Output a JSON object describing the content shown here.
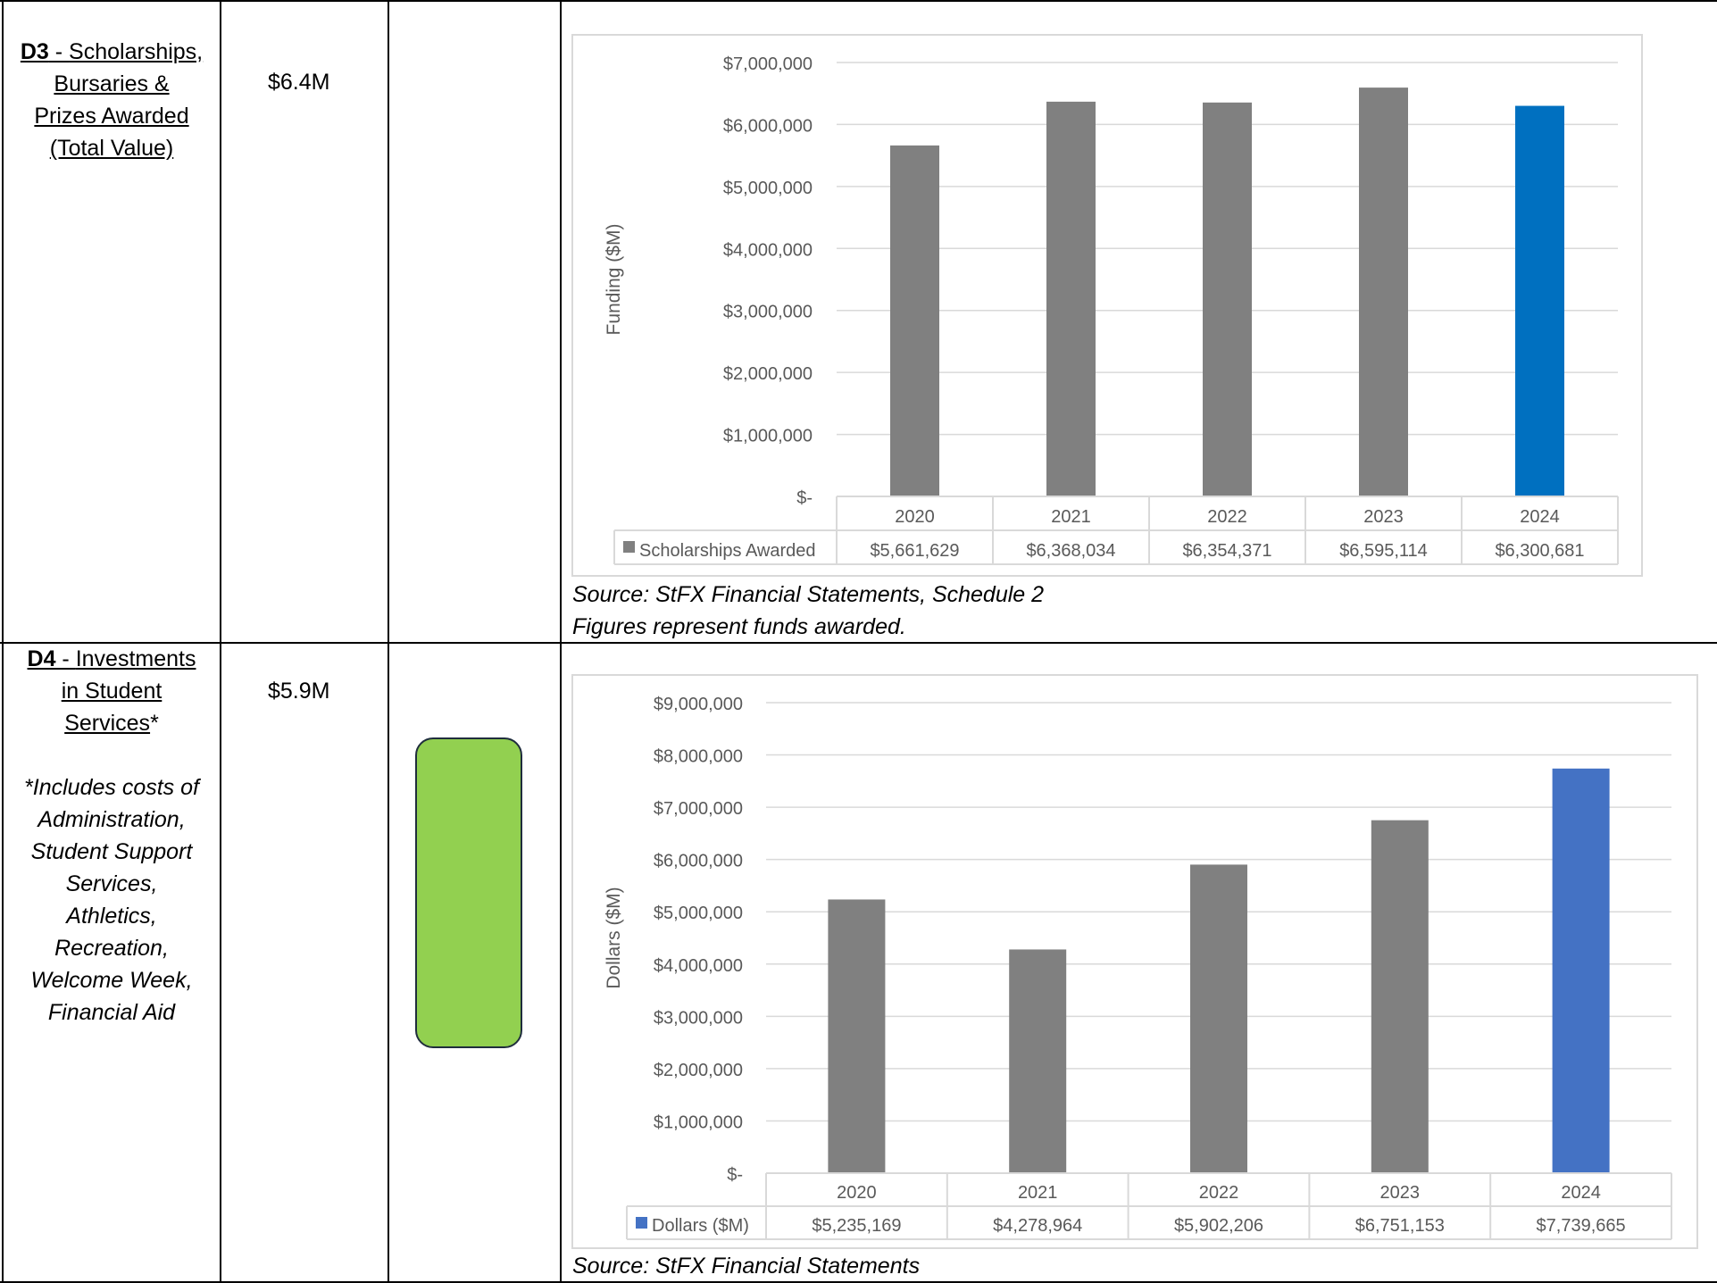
{
  "rows": [
    {
      "code": "D3",
      "label_lines": [
        "Scholarships,",
        "Bursaries &",
        "Prizes Awarded",
        "(Total Value)"
      ],
      "note_lines": [],
      "target": "$6.4M",
      "status_color": "",
      "captions": [
        "Source: StFX Financial Statements, Schedule 2",
        "Figures represent funds awarded."
      ]
    },
    {
      "code": "D4",
      "label_lines": [
        "Investments",
        "in Student",
        "Services"
      ],
      "label_suffix": "*",
      "note_lines": [
        "*Includes costs of",
        "Administration,",
        "Student Support",
        "Services,",
        "Athletics,",
        "Recreation,",
        "Welcome Week,",
        "Financial Aid"
      ],
      "target": "$5.9M",
      "status_color": "#92d050",
      "captions": [
        "Source: StFX Financial Statements"
      ]
    }
  ],
  "chart_data": [
    {
      "type": "bar",
      "ylabel": "Funding ($M)",
      "ylim": [
        0,
        7000000
      ],
      "ytick_step": 1000000,
      "yticks": [
        "$-",
        "$1,000,000",
        "$2,000,000",
        "$3,000,000",
        "$4,000,000",
        "$5,000,000",
        "$6,000,000",
        "$7,000,000"
      ],
      "grid": true,
      "categories": [
        "2020",
        "2021",
        "2022",
        "2023",
        "2024"
      ],
      "series": [
        {
          "name": "Scholarships Awarded",
          "values": [
            5661629,
            6368034,
            6354371,
            6595114,
            6300681
          ],
          "labels": [
            "$5,661,629",
            "$6,368,034",
            "$6,354,371",
            "$6,595,114",
            "$6,300,681"
          ]
        }
      ],
      "bar_colors": [
        "#808080",
        "#808080",
        "#808080",
        "#808080",
        "#0070c0"
      ],
      "legend_color": "#808080"
    },
    {
      "type": "bar",
      "ylabel": "Dollars ($M)",
      "ylim": [
        0,
        9000000
      ],
      "ytick_step": 1000000,
      "yticks": [
        "$-",
        "$1,000,000",
        "$2,000,000",
        "$3,000,000",
        "$4,000,000",
        "$5,000,000",
        "$6,000,000",
        "$7,000,000",
        "$8,000,000",
        "$9,000,000"
      ],
      "grid": true,
      "categories": [
        "2020",
        "2021",
        "2022",
        "2023",
        "2024"
      ],
      "series": [
        {
          "name": "Dollars ($M)",
          "values": [
            5235169,
            4278964,
            5902206,
            6751153,
            7739665
          ],
          "labels": [
            "$5,235,169",
            "$4,278,964",
            "$5,902,206",
            "$6,751,153",
            "$7,739,665"
          ]
        }
      ],
      "bar_colors": [
        "#808080",
        "#808080",
        "#808080",
        "#808080",
        "#4472c4"
      ],
      "legend_color": "#4472c4"
    }
  ]
}
